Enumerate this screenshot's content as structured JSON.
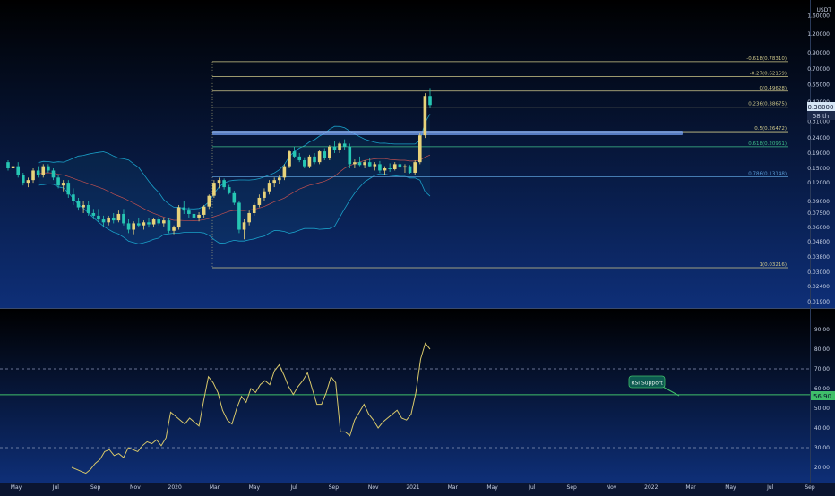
{
  "colors": {
    "bg_top": "#000000",
    "bg_bottom": "#0e2f78",
    "up": "#e8d37a",
    "down": "#26c6b3",
    "fib": "#cfc88a",
    "fib_green": "#3fbf8a",
    "fib_blue": "#5a9cd6",
    "bb": "#1aa0c8",
    "support_band": "#7aa8ff",
    "rsi_line": "#d8c86a",
    "rsi_support": "#3fbf6a",
    "axis_text": "#c8d2e6"
  },
  "price_axis": {
    "unit": "USDT",
    "ticks": [
      "2.70000",
      "1.60000",
      "1.20000",
      "0.90000",
      "0.70000",
      "0.55000",
      "0.42000",
      "0.38000",
      "0.31000",
      "0.24000",
      "0.19000",
      "0.15000",
      "0.12000",
      "0.09000",
      "0.07500",
      "0.06000",
      "0.04800",
      "0.03800",
      "0.03000",
      "0.02400",
      "0.01900"
    ],
    "last_price": "0.38000",
    "countdown": "58 th"
  },
  "rsi_axis": {
    "ticks": [
      "90.00",
      "80.00",
      "70.00",
      "60.00",
      "50.00",
      "40.00",
      "30.00",
      "20.00"
    ],
    "current": "56.90"
  },
  "time_axis": [
    "May",
    "Jul",
    "Sep",
    "Nov",
    "2020",
    "Mar",
    "May",
    "Jul",
    "Sep",
    "Nov",
    "2021",
    "Mar",
    "May",
    "Jul",
    "Sep",
    "Nov",
    "2022",
    "Mar",
    "May",
    "Jul",
    "Sep"
  ],
  "fib_levels": [
    {
      "label": "-0.618(0.78310)",
      "value": 0.7831,
      "color": "fib"
    },
    {
      "label": "-0.27(0.62159)",
      "value": 0.62159,
      "color": "fib"
    },
    {
      "label": "0(0.49628)",
      "value": 0.49628,
      "color": "fib"
    },
    {
      "label": "0.236(0.38675)",
      "value": 0.38675,
      "color": "fib"
    },
    {
      "label": "0.5(0.26472)",
      "value": 0.26472,
      "color": "fib"
    },
    {
      "label": "0.618(0.20961)",
      "value": 0.20961,
      "color": "fib_green"
    },
    {
      "label": "0.786(0.13148)",
      "value": 0.13148,
      "color": "fib_blue"
    },
    {
      "label": "1(0.03216)",
      "value": 0.03216,
      "color": "fib"
    }
  ],
  "rsi_annotation": "RSI Support",
  "chart_data": [
    {
      "type": "candlestick",
      "title": "",
      "ylabel": "USDT",
      "yscale": "log",
      "ylim": [
        0.019,
        2.7
      ],
      "x_start": "2019-04",
      "x_end": "2021-02",
      "candle_interval": "weekly",
      "ohlc": [
        [
          0.165,
          0.17,
          0.145,
          0.15
        ],
        [
          0.15,
          0.16,
          0.14,
          0.155
        ],
        [
          0.155,
          0.165,
          0.13,
          0.135
        ],
        [
          0.135,
          0.14,
          0.115,
          0.12
        ],
        [
          0.12,
          0.13,
          0.112,
          0.125
        ],
        [
          0.125,
          0.15,
          0.12,
          0.145
        ],
        [
          0.145,
          0.155,
          0.13,
          0.135
        ],
        [
          0.135,
          0.16,
          0.13,
          0.155
        ],
        [
          0.155,
          0.16,
          0.14,
          0.145
        ],
        [
          0.145,
          0.15,
          0.125,
          0.13
        ],
        [
          0.13,
          0.135,
          0.11,
          0.115
        ],
        [
          0.115,
          0.125,
          0.105,
          0.12
        ],
        [
          0.12,
          0.125,
          0.095,
          0.1
        ],
        [
          0.1,
          0.11,
          0.085,
          0.09
        ],
        [
          0.09,
          0.095,
          0.078,
          0.082
        ],
        [
          0.082,
          0.09,
          0.075,
          0.085
        ],
        [
          0.085,
          0.09,
          0.072,
          0.075
        ],
        [
          0.075,
          0.08,
          0.068,
          0.072
        ],
        [
          0.072,
          0.08,
          0.065,
          0.068
        ],
        [
          0.068,
          0.072,
          0.06,
          0.065
        ],
        [
          0.065,
          0.072,
          0.062,
          0.07
        ],
        [
          0.07,
          0.075,
          0.064,
          0.067
        ],
        [
          0.067,
          0.078,
          0.065,
          0.074
        ],
        [
          0.074,
          0.08,
          0.062,
          0.064
        ],
        [
          0.064,
          0.068,
          0.055,
          0.058
        ],
        [
          0.058,
          0.066,
          0.054,
          0.064
        ],
        [
          0.064,
          0.07,
          0.06,
          0.062
        ],
        [
          0.062,
          0.067,
          0.058,
          0.065
        ],
        [
          0.065,
          0.07,
          0.06,
          0.063
        ],
        [
          0.063,
          0.07,
          0.06,
          0.068
        ],
        [
          0.068,
          0.071,
          0.062,
          0.064
        ],
        [
          0.064,
          0.069,
          0.061,
          0.067
        ],
        [
          0.067,
          0.069,
          0.055,
          0.057
        ],
        [
          0.057,
          0.062,
          0.054,
          0.06
        ],
        [
          0.06,
          0.085,
          0.058,
          0.082
        ],
        [
          0.082,
          0.09,
          0.074,
          0.078
        ],
        [
          0.078,
          0.082,
          0.07,
          0.074
        ],
        [
          0.074,
          0.078,
          0.067,
          0.07
        ],
        [
          0.07,
          0.076,
          0.066,
          0.073
        ],
        [
          0.073,
          0.085,
          0.07,
          0.083
        ],
        [
          0.083,
          0.1,
          0.08,
          0.098
        ],
        [
          0.098,
          0.125,
          0.095,
          0.12
        ],
        [
          0.12,
          0.13,
          0.11,
          0.125
        ],
        [
          0.125,
          0.128,
          0.108,
          0.112
        ],
        [
          0.112,
          0.116,
          0.1,
          0.102
        ],
        [
          0.102,
          0.106,
          0.085,
          0.088
        ],
        [
          0.088,
          0.09,
          0.055,
          0.058
        ],
        [
          0.058,
          0.068,
          0.05,
          0.065
        ],
        [
          0.065,
          0.078,
          0.062,
          0.075
        ],
        [
          0.075,
          0.088,
          0.072,
          0.085
        ],
        [
          0.085,
          0.1,
          0.082,
          0.095
        ],
        [
          0.095,
          0.11,
          0.09,
          0.105
        ],
        [
          0.105,
          0.125,
          0.1,
          0.12
        ],
        [
          0.12,
          0.13,
          0.112,
          0.125
        ],
        [
          0.125,
          0.135,
          0.118,
          0.13
        ],
        [
          0.13,
          0.16,
          0.125,
          0.155
        ],
        [
          0.155,
          0.2,
          0.15,
          0.195
        ],
        [
          0.195,
          0.21,
          0.175,
          0.18
        ],
        [
          0.18,
          0.19,
          0.165,
          0.17
        ],
        [
          0.17,
          0.178,
          0.15,
          0.155
        ],
        [
          0.155,
          0.185,
          0.15,
          0.18
        ],
        [
          0.18,
          0.19,
          0.16,
          0.165
        ],
        [
          0.165,
          0.2,
          0.16,
          0.195
        ],
        [
          0.195,
          0.205,
          0.17,
          0.175
        ],
        [
          0.175,
          0.215,
          0.17,
          0.21
        ],
        [
          0.21,
          0.23,
          0.19,
          0.2
        ],
        [
          0.2,
          0.225,
          0.19,
          0.22
        ],
        [
          0.22,
          0.235,
          0.2,
          0.21
        ],
        [
          0.21,
          0.22,
          0.15,
          0.16
        ],
        [
          0.16,
          0.172,
          0.15,
          0.165
        ],
        [
          0.165,
          0.18,
          0.155,
          0.158
        ],
        [
          0.158,
          0.17,
          0.15,
          0.165
        ],
        [
          0.165,
          0.175,
          0.152,
          0.155
        ],
        [
          0.155,
          0.165,
          0.145,
          0.16
        ],
        [
          0.16,
          0.168,
          0.14,
          0.145
        ],
        [
          0.145,
          0.155,
          0.135,
          0.15
        ],
        [
          0.15,
          0.162,
          0.142,
          0.148
        ],
        [
          0.148,
          0.165,
          0.145,
          0.16
        ],
        [
          0.16,
          0.168,
          0.148,
          0.152
        ],
        [
          0.152,
          0.16,
          0.14,
          0.155
        ],
        [
          0.155,
          0.158,
          0.138,
          0.14
        ],
        [
          0.14,
          0.17,
          0.135,
          0.165
        ],
        [
          0.165,
          0.26,
          0.16,
          0.25
        ],
        [
          0.25,
          0.48,
          0.24,
          0.46
        ],
        [
          0.46,
          0.52,
          0.38,
          0.4
        ]
      ]
    },
    {
      "type": "line",
      "title": "",
      "ylim": [
        15,
        95
      ],
      "reference_lines": [
        70,
        30
      ],
      "support_line": 56.9,
      "values": [
        20,
        19,
        18,
        17,
        19,
        22,
        24,
        28,
        29,
        26,
        27,
        25,
        30,
        29,
        28,
        31,
        33,
        32,
        34,
        31,
        35,
        48,
        46,
        44,
        42,
        45,
        43,
        41,
        54,
        66,
        63,
        58,
        49,
        44,
        42,
        50,
        56,
        53,
        60,
        58,
        62,
        64,
        62,
        69,
        72,
        67,
        61,
        57,
        61,
        64,
        68,
        60,
        52,
        52,
        58,
        66,
        63,
        38,
        38,
        36,
        44,
        48,
        52,
        47,
        44,
        40,
        43,
        45,
        47,
        49,
        45,
        44,
        47,
        58,
        75,
        83,
        80
      ]
    }
  ]
}
